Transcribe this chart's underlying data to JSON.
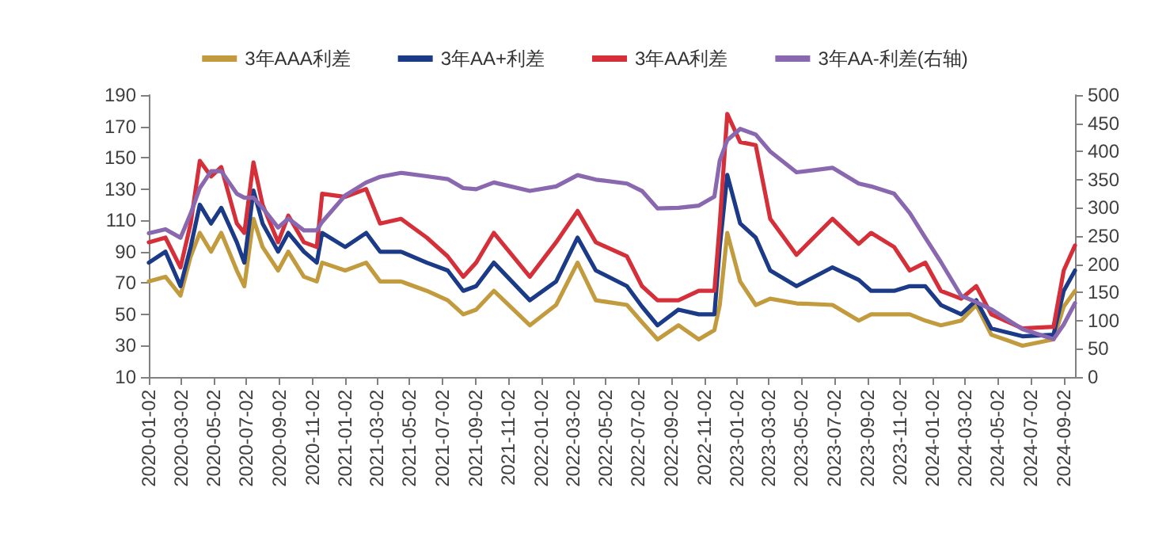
{
  "chart_data": {
    "type": "line",
    "legend": "top",
    "grid": false,
    "marker": "none",
    "line_style": "solid",
    "xlim": [
      "2020-01-02",
      "2024-09-23"
    ],
    "xticks": [
      "2020-01-02",
      "2020-03-02",
      "2020-05-02",
      "2020-07-02",
      "2020-09-02",
      "2020-11-02",
      "2021-01-02",
      "2021-03-02",
      "2021-05-02",
      "2021-07-02",
      "2021-09-02",
      "2021-11-02",
      "2022-01-02",
      "2022-03-02",
      "2022-05-02",
      "2022-07-02",
      "2022-09-02",
      "2022-11-02",
      "2023-01-02",
      "2023-03-02",
      "2023-05-02",
      "2023-07-02",
      "2023-09-02",
      "2023-11-02",
      "2024-01-02",
      "2024-03-02",
      "2024-05-02",
      "2024-07-02",
      "2024-09-02"
    ],
    "ylim": [
      10,
      190
    ],
    "yticks": [
      10,
      30,
      50,
      70,
      90,
      110,
      130,
      150,
      170,
      190
    ],
    "y2lim": [
      0,
      500
    ],
    "y2ticks": [
      0,
      50,
      100,
      150,
      200,
      250,
      300,
      350,
      400,
      450,
      500
    ],
    "x": [
      "2020-01-02",
      "2020-02-02",
      "2020-03-01",
      "2020-03-20",
      "2020-04-06",
      "2020-04-27",
      "2020-05-16",
      "2020-06-14",
      "2020-06-28",
      "2020-07-15",
      "2020-08-01",
      "2020-08-30",
      "2020-09-18",
      "2020-10-17",
      "2020-11-10",
      "2020-11-20",
      "2021-01-02",
      "2021-02-10",
      "2021-03-08",
      "2021-04-16",
      "2021-06-03",
      "2021-07-12",
      "2021-08-10",
      "2021-09-03",
      "2021-10-06",
      "2021-12-12",
      "2022-01-30",
      "2022-03-11",
      "2022-04-14",
      "2022-06-11",
      "2022-07-09",
      "2022-08-07",
      "2022-09-15",
      "2022-10-23",
      "2022-11-21",
      "2022-12-01",
      "2022-12-15",
      "2023-01-08",
      "2023-02-06",
      "2023-03-05",
      "2023-04-23",
      "2023-06-29",
      "2023-08-17",
      "2023-09-09",
      "2023-10-22",
      "2023-11-20",
      "2023-12-19",
      "2024-01-17",
      "2024-02-24",
      "2024-03-23",
      "2024-04-20",
      "2024-06-17",
      "2024-08-14",
      "2024-09-02",
      "2024-09-23"
    ],
    "series": [
      {
        "name": "3年AAA利差",
        "color": "#c39b3f",
        "values": [
          71,
          74,
          62,
          87,
          102,
          90,
          102,
          78,
          68,
          111,
          93,
          78,
          90,
          74,
          71,
          83,
          78,
          83,
          71,
          71,
          65,
          59,
          50,
          53,
          65,
          43,
          56,
          83,
          59,
          56,
          45,
          34,
          43,
          34,
          40,
          56,
          102,
          71,
          56,
          60,
          57,
          56,
          46,
          50,
          50,
          50,
          46,
          43,
          46,
          56,
          37,
          30,
          34,
          55,
          65
        ]
      },
      {
        "name": "3年AA+利差",
        "color": "#1b3a87",
        "values": [
          83,
          90,
          68,
          93,
          120,
          108,
          118,
          96,
          83,
          129,
          108,
          90,
          102,
          90,
          83,
          102,
          93,
          102,
          90,
          90,
          83,
          78,
          65,
          68,
          83,
          59,
          71,
          99,
          78,
          68,
          55,
          43,
          53,
          50,
          50,
          93,
          139,
          108,
          99,
          78,
          68,
          80,
          72,
          65,
          65,
          68,
          68,
          56,
          50,
          59,
          41,
          36,
          37,
          65,
          78
        ]
      },
      {
        "name": "3年AA利差",
        "color": "#d5303a",
        "values": [
          96,
          99,
          80,
          108,
          148,
          138,
          144,
          108,
          102,
          147,
          120,
          96,
          113,
          96,
          93,
          127,
          125,
          130,
          108,
          111,
          99,
          87,
          74,
          83,
          102,
          74,
          96,
          116,
          96,
          87,
          68,
          59,
          59,
          65,
          65,
          108,
          178,
          160,
          158,
          111,
          88,
          111,
          95,
          102,
          93,
          78,
          83,
          65,
          60,
          68,
          50,
          41,
          42,
          78,
          94
        ]
      },
      {
        "name": "3年AA-利差(右轴)",
        "color": "#8a68b0",
        "axis": "y2",
        "values": [
          255,
          262,
          247,
          290,
          335,
          365,
          365,
          325,
          318,
          318,
          300,
          265,
          281,
          260,
          260,
          275,
          322,
          345,
          355,
          362,
          356,
          351,
          335,
          333,
          345,
          330,
          338,
          358,
          350,
          343,
          330,
          299,
          300,
          304,
          320,
          384,
          420,
          440,
          430,
          400,
          363,
          371,
          343,
          338,
          325,
          291,
          247,
          204,
          144,
          133,
          120,
          85,
          67,
          93,
          131
        ]
      }
    ]
  }
}
